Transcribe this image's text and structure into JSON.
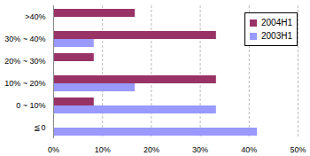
{
  "chart_data": {
    "type": "bar",
    "orientation": "horizontal",
    "categories": [
      ">40%",
      "30% ~ 40%",
      "20% ~ 30%",
      "10% ~ 20%",
      "0 ~ 10%",
      "≦0"
    ],
    "series": [
      {
        "name": "2004H1",
        "color": "#993366",
        "values": [
          16.7,
          33.3,
          8.3,
          33.3,
          8.3,
          0
        ]
      },
      {
        "name": "2003H1",
        "color": "#9999ff",
        "values": [
          0,
          8.3,
          0,
          16.7,
          33.3,
          41.7
        ]
      }
    ],
    "xlim": [
      0,
      50
    ],
    "xticks": [
      {
        "value": 0,
        "label": "0%"
      },
      {
        "value": 10,
        "label": "10%"
      },
      {
        "value": 20,
        "label": "20%"
      },
      {
        "value": 30,
        "label": "30%"
      },
      {
        "value": 40,
        "label": "40%"
      },
      {
        "value": 50,
        "label": "50%"
      }
    ],
    "grid": true,
    "legend": "top-right"
  }
}
